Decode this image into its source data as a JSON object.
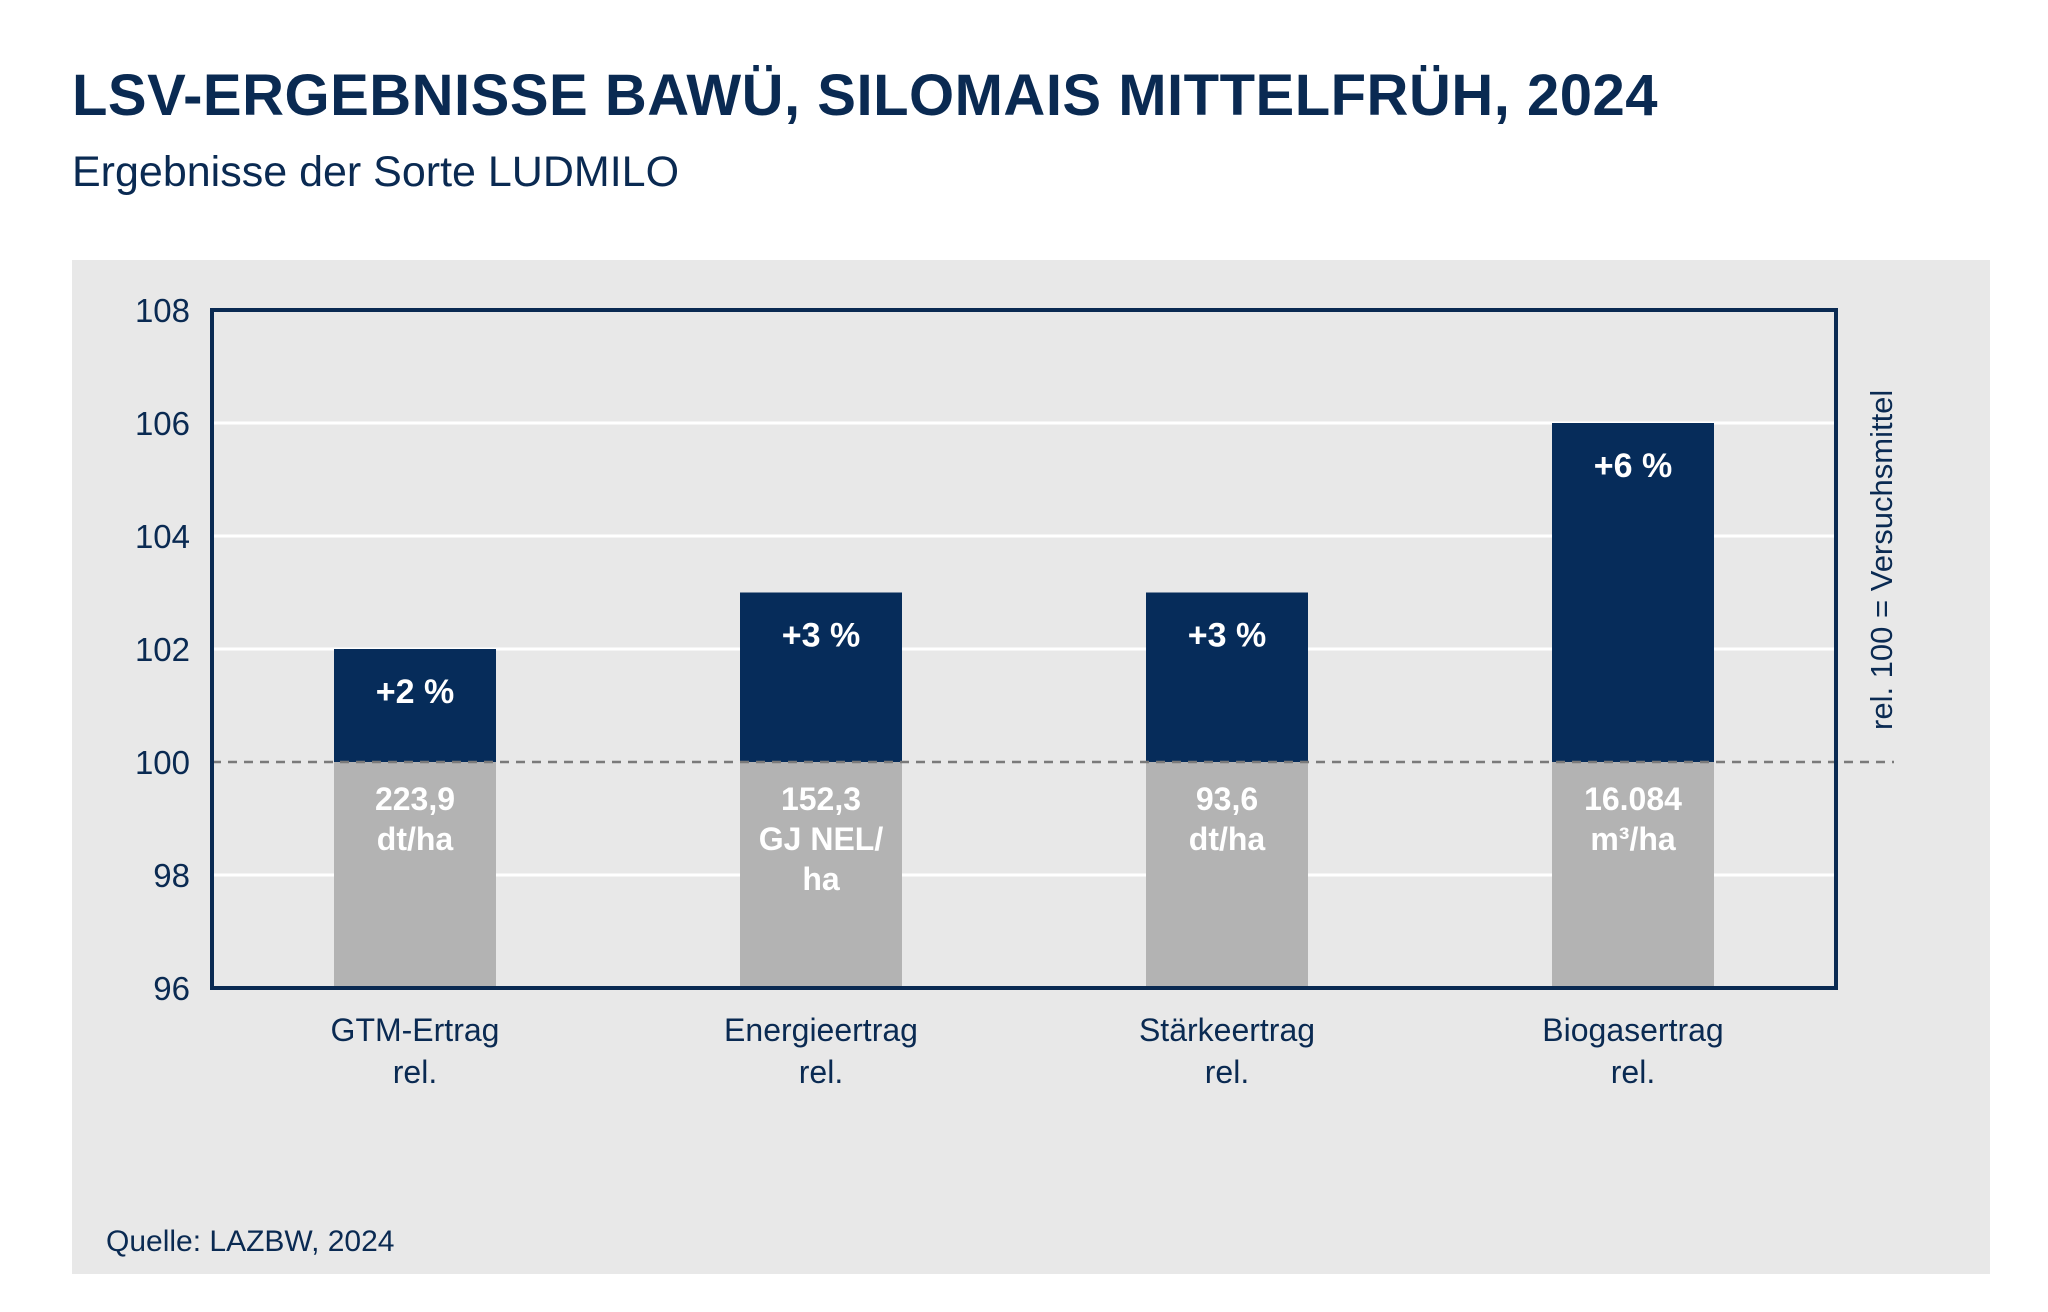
{
  "header": {
    "title": "LSV-ERGEBNISSE BAWÜ, SILOMAIS MITTELFRÜH, 2024",
    "subtitle": "Ergebnisse der Sorte LUDMILO"
  },
  "footer": {
    "source": "Quelle: LAZBW, 2024"
  },
  "colors": {
    "panel_background": "#e8e8e8",
    "bar_above": "#062c5a",
    "bar_below": "#b3b3b3",
    "frame": "#0a2a52",
    "gridline": "#ffffff",
    "reference_line": "#7a7a7a",
    "text": "#0a2a52"
  },
  "chart_data": {
    "type": "bar",
    "title": "LSV-ERGEBNISSE BAWÜ, SILOMAIS MITTELFRÜH, 2024",
    "subtitle": "Ergebnisse der Sorte LUDMILO",
    "categories": [
      [
        "GTM-Ertrag",
        "rel."
      ],
      [
        "Energieertrag",
        "rel."
      ],
      [
        "Stärkeertrag",
        "rel."
      ],
      [
        "Biogasertrag",
        "rel."
      ]
    ],
    "values": [
      102,
      103,
      103,
      106
    ],
    "baseline": 100,
    "ylim": [
      96,
      108
    ],
    "yticks": [
      "96",
      "98",
      "100",
      "102",
      "104",
      "106",
      "108"
    ],
    "ylabel": "rel. 100 = Versuchsmittel",
    "xlabel": "",
    "grid": true,
    "percent_labels": [
      "+2 %",
      "+3 %",
      "+3 %",
      "+6 %"
    ],
    "absolute_labels": [
      [
        "223,9",
        "dt/ha"
      ],
      [
        "152,3",
        "GJ NEL/",
        "ha"
      ],
      [
        "93,6",
        "dt/ha"
      ],
      [
        "16.084",
        "m³/ha"
      ]
    ],
    "legend": "none"
  }
}
